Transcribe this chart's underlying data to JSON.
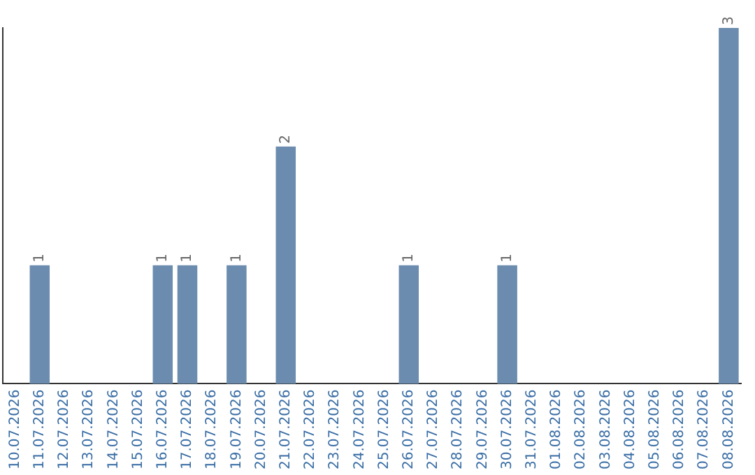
{
  "chart_data": {
    "type": "bar",
    "categories": [
      "10.07.2026",
      "11.07.2026",
      "12.07.2026",
      "13.07.2026",
      "14.07.2026",
      "15.07.2026",
      "16.07.2026",
      "17.07.2026",
      "18.07.2026",
      "19.07.2026",
      "20.07.2026",
      "21.07.2026",
      "22.07.2026",
      "23.07.2026",
      "24.07.2026",
      "25.07.2026",
      "26.07.2026",
      "27.07.2026",
      "28.07.2026",
      "29.07.2026",
      "30.07.2026",
      "31.07.2026",
      "01.08.2026",
      "02.08.2026",
      "03.08.2026",
      "04.08.2026",
      "05.08.2026",
      "06.08.2026",
      "07.08.2026",
      "08.08.2026"
    ],
    "values": [
      0,
      1,
      0,
      0,
      0,
      0,
      1,
      1,
      0,
      1,
      0,
      2,
      0,
      0,
      0,
      0,
      1,
      0,
      0,
      0,
      1,
      0,
      0,
      0,
      0,
      0,
      0,
      0,
      0,
      3
    ],
    "value_labels": [
      null,
      "1",
      null,
      null,
      null,
      null,
      "1",
      "1",
      null,
      "1",
      null,
      "2",
      null,
      null,
      null,
      null,
      "1",
      null,
      null,
      null,
      "1",
      null,
      null,
      null,
      null,
      null,
      null,
      null,
      null,
      "3"
    ],
    "color": "#6b8cae",
    "grid": false,
    "legend": false,
    "tick_labels": "x"
  }
}
